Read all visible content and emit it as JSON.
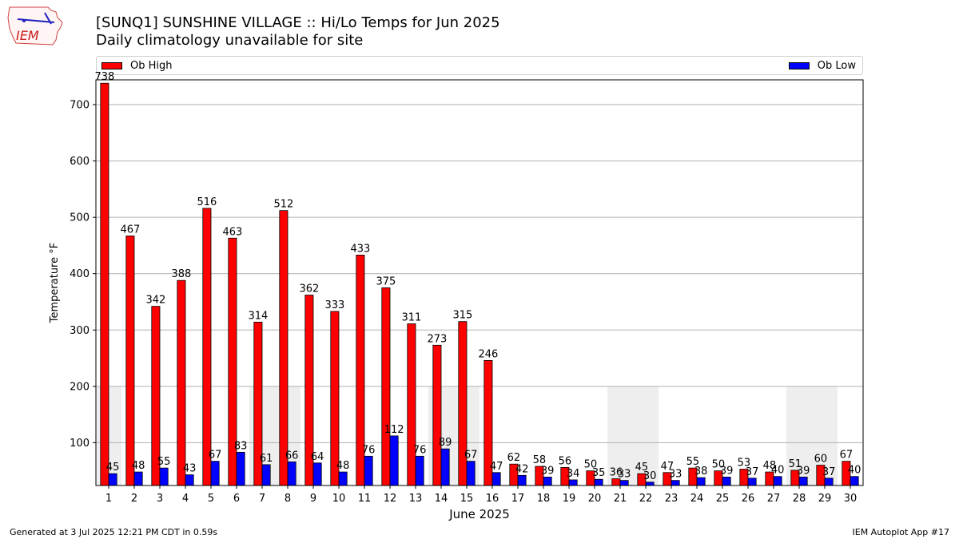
{
  "header": {
    "title_line1": "[SUNQ1] SUNSHINE VILLAGE :: Hi/Lo Temps for Jun 2025",
    "title_line2": "Daily climatology unavailable for site"
  },
  "logo": {
    "text": "IEM"
  },
  "legend": {
    "high_label": "Ob High",
    "low_label": "Ob Low"
  },
  "footer": {
    "generated": "Generated at 3 Jul 2025 12:21 PM CDT in 0.59s",
    "app": "IEM Autoplot App #17"
  },
  "colors": {
    "high": "#ff0000",
    "low": "#0000ff",
    "shade": "#eeeeee",
    "grid": "#b0b0b0"
  },
  "chart_data": {
    "type": "bar",
    "xlabel": "June 2025",
    "ylabel": "Temperature $^\\circ$F",
    "categories": [
      "1",
      "2",
      "3",
      "4",
      "5",
      "6",
      "7",
      "8",
      "9",
      "10",
      "11",
      "12",
      "13",
      "14",
      "15",
      "16",
      "17",
      "18",
      "19",
      "20",
      "21",
      "22",
      "23",
      "24",
      "25",
      "26",
      "27",
      "28",
      "29",
      "30"
    ],
    "series": [
      {
        "name": "Ob High",
        "values": [
          738,
          467,
          342,
          388,
          516,
          463,
          314,
          512,
          362,
          333,
          433,
          375,
          311,
          273,
          315,
          246,
          62,
          58,
          56,
          50,
          36,
          45,
          47,
          55,
          50,
          53,
          48,
          51,
          60,
          67
        ]
      },
      {
        "name": "Ob Low",
        "values": [
          45,
          48,
          55,
          43,
          67,
          83,
          61,
          66,
          64,
          48,
          76,
          112,
          76,
          89,
          67,
          47,
          42,
          39,
          34,
          35,
          33,
          30,
          33,
          38,
          39,
          37,
          40,
          39,
          37,
          40
        ]
      }
    ],
    "yticks": [
      100,
      200,
      300,
      400,
      500,
      600,
      700
    ],
    "ylim": [
      24,
      744
    ],
    "grid": "horizontal",
    "legend": "top",
    "shaded_ranges": [
      {
        "start_day": 1,
        "end_day": 1,
        "top": 200
      },
      {
        "start_day": 7,
        "end_day": 8,
        "top": 200
      },
      {
        "start_day": 14,
        "end_day": 15,
        "top": 200
      },
      {
        "start_day": 21,
        "end_day": 22,
        "top": 200
      },
      {
        "start_day": 28,
        "end_day": 29,
        "top": 200
      }
    ]
  }
}
